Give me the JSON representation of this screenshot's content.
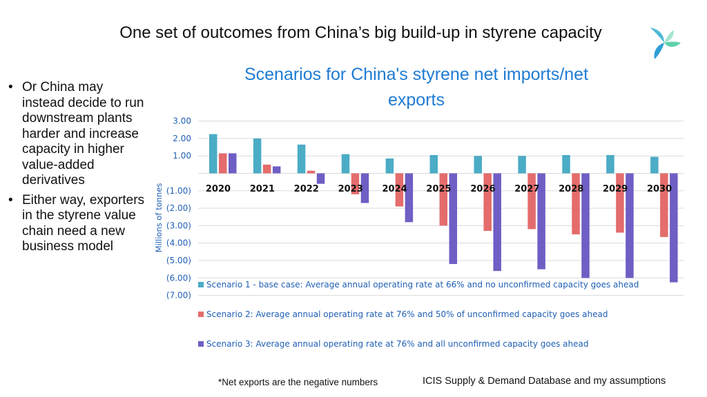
{
  "slide": {
    "title": "One set of outcomes from China’s big build-up in styrene capacity",
    "bullets": [
      "Or China may instead decide to run downstream plants harder and increase capacity in higher value-added derivatives",
      "Either way, exporters in the styrene value chain need a new business model"
    ],
    "bullet_glyph": "•",
    "footnote": "*Net exports are the negative numbers",
    "source": "ICIS Supply & Demand Database and my assumptions",
    "logo_icon": "propeller-logo-icon"
  },
  "chart_data": {
    "type": "bar",
    "title": "Scenarios for China's styrene net imports/net exports",
    "title_lines": [
      "Scenarios for China's styrene net imports/net",
      "exports"
    ],
    "ylabel": "Millions of tonnes",
    "ylim": [
      -7,
      3
    ],
    "yticks": [
      3,
      2,
      1,
      -1,
      -2,
      -3,
      -4,
      -5,
      -6,
      -7
    ],
    "ytick_labels": [
      "3.00",
      "2.00",
      "1.00",
      "(1.00)",
      "(2.00)",
      "(3.00)",
      "(4.00)",
      "(5.00)",
      "(6.00)",
      "(7.00)"
    ],
    "grid": true,
    "legend_position": "bottom",
    "categories": [
      "2020",
      "2021",
      "2022",
      "2023",
      "2024",
      "2025",
      "2026",
      "2027",
      "2028",
      "2029",
      "2030"
    ],
    "series": [
      {
        "name": "Scenario 1 -  base case: Average annual operating rate at 66%  and no unconfirmed capacity goes ahead",
        "color": "#4bacc6",
        "values": [
          2.25,
          2.0,
          1.65,
          1.1,
          0.85,
          1.05,
          1.0,
          1.0,
          1.05,
          1.05,
          0.95
        ]
      },
      {
        "name": "Scenario 2: Average annual operating rate at 76% and 50% of unconfirmed capacity goes ahead",
        "color": "#e46c6c",
        "values": [
          1.15,
          0.5,
          0.15,
          -1.2,
          -1.9,
          -3.0,
          -3.3,
          -3.2,
          -3.5,
          -3.4,
          -3.65
        ]
      },
      {
        "name": "Scenario 3: Average annual operating rate at 76% and all unconfirmed capacity goes ahead",
        "color": "#6f5ec4",
        "values": [
          1.15,
          0.4,
          -0.6,
          -1.7,
          -2.8,
          -5.2,
          -5.6,
          -5.5,
          -6.0,
          -6.0,
          -6.25
        ]
      }
    ]
  }
}
